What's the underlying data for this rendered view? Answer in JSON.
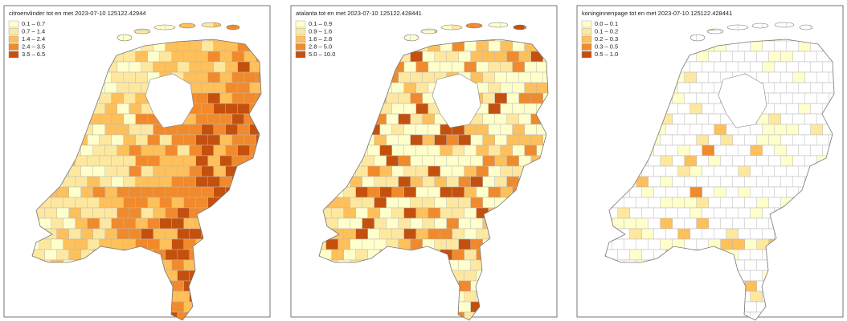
{
  "panels": [
    {
      "title": "citroenvlinder tot en met 2023-07-10 125122.42944",
      "legend": [
        {
          "label": "0.1 – 0.7",
          "color": "#ffffcc"
        },
        {
          "label": "0.7 – 1.4",
          "color": "#fee8a0"
        },
        {
          "label": "1.4 – 2.4",
          "color": "#fdc05a"
        },
        {
          "label": "2.4 – 3.5",
          "color": "#f08a2c"
        },
        {
          "label": "3.5 – 6.5",
          "color": "#c4500e"
        }
      ]
    },
    {
      "title": "atalanta tot en met 2023-07-10 125122.428441",
      "legend": [
        {
          "label": "0.1 – 0.9",
          "color": "#ffffcc"
        },
        {
          "label": "0.9 – 1.6",
          "color": "#fee8a0"
        },
        {
          "label": "1.6 – 2.8",
          "color": "#fdc05a"
        },
        {
          "label": "2.8 – 5.0",
          "color": "#f08a2c"
        },
        {
          "label": "5.0 – 10.0",
          "color": "#c4500e"
        }
      ]
    },
    {
      "title": "koninginnenpage tot en met 2023-07-10 125122.428441",
      "legend": [
        {
          "label": "0.0 – 0.1",
          "color": "#ffffcc"
        },
        {
          "label": "0.1 – 0.2",
          "color": "#fee8a0"
        },
        {
          "label": "0.2 – 0.3",
          "color": "#fdc05a"
        },
        {
          "label": "0.3 – 0.5",
          "color": "#f08a2c"
        },
        {
          "label": "0.5 – 1.0",
          "color": "#c4500e"
        }
      ]
    }
  ]
}
